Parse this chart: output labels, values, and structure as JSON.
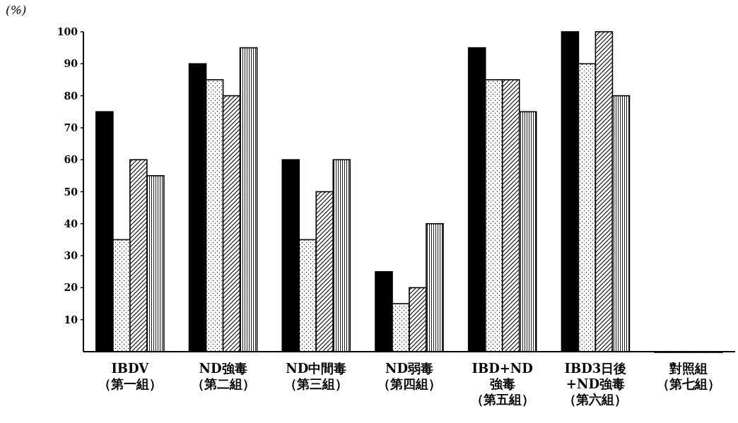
{
  "chart_data": {
    "type": "bar",
    "ylabel": "(%)",
    "categories": [
      "IBDV（第一組）",
      "ND強毒（第二組）",
      "ND中間毒（第三組）",
      "ND弱毒（第四組）",
      "IBD+ND強毒（第五組）",
      "IBD3日後+ND強毒（第六組）",
      "對照組（第七組）"
    ],
    "series": [
      {
        "color": "#000000",
        "values": [
          75,
          90,
          60,
          25,
          95,
          100,
          0
        ]
      },
      {
        "color": "#000000",
        "values": [
          35,
          85,
          35,
          15,
          85,
          90,
          0
        ]
      },
      {
        "color": "#000000",
        "values": [
          60,
          80,
          50,
          20,
          85,
          100,
          0
        ]
      },
      {
        "color": "#000000",
        "values": [
          55,
          95,
          60,
          40,
          75,
          80,
          0
        ]
      }
    ],
    "ylim": [
      0,
      100
    ],
    "yticks": [
      10,
      20,
      30,
      40,
      50,
      60,
      70,
      80,
      90,
      100
    ]
  }
}
